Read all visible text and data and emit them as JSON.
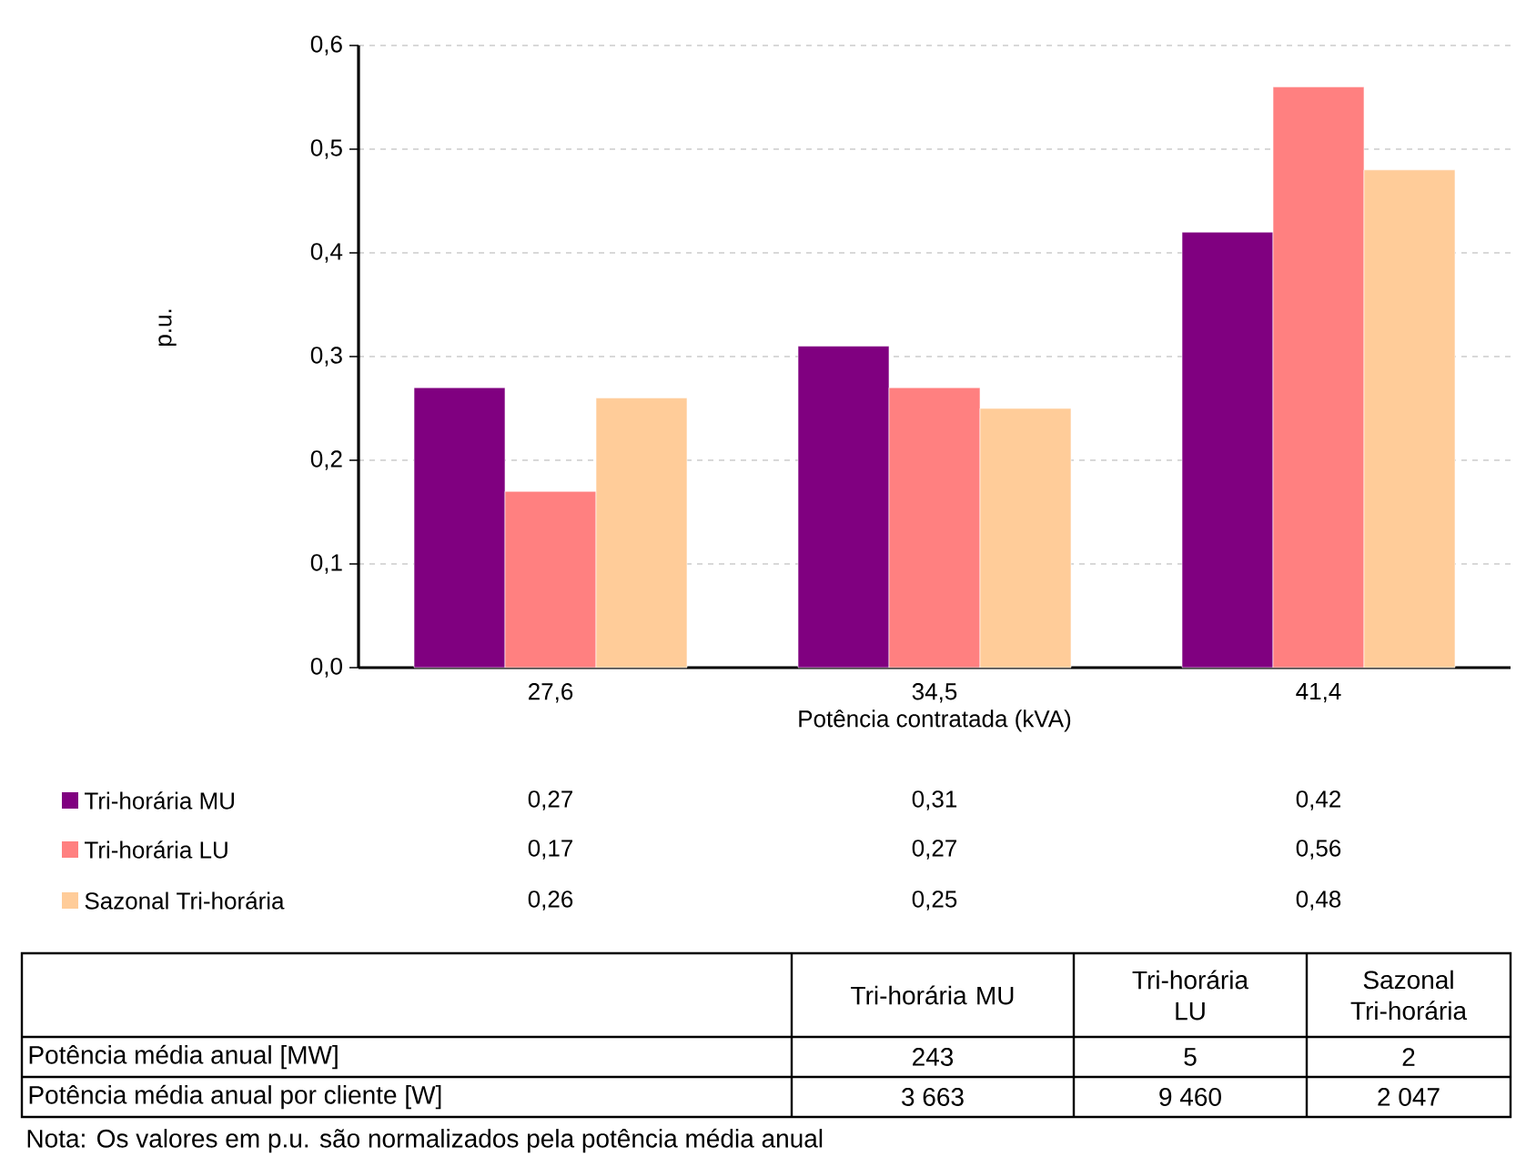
{
  "chart_data": [
    {
      "type": "bar",
      "xlabel": "Potência contratada (kVA)",
      "ylabel": "p.u.",
      "categories": [
        "27,6",
        "34,5",
        "41,4"
      ],
      "series": [
        {
          "name": "Tri-horária MU",
          "color": "#800080",
          "values": [
            0.27,
            0.31,
            0.42
          ],
          "value_labels": [
            "0,27",
            "0,31",
            "0,42"
          ]
        },
        {
          "name": "Tri-horária LU",
          "color": "#ff8080",
          "values": [
            0.17,
            0.27,
            0.56
          ],
          "value_labels": [
            "0,17",
            "0,27",
            "0,56"
          ]
        },
        {
          "name": "Sazonal Tri-horária",
          "color": "#ffcc99",
          "values": [
            0.26,
            0.25,
            0.48
          ],
          "value_labels": [
            "0,26",
            "0,25",
            "0,48"
          ]
        }
      ],
      "ylim": [
        0,
        0.6
      ],
      "yticks": [
        {
          "value": 0,
          "label": "0,0"
        },
        {
          "value": 0.1,
          "label": "0,1"
        },
        {
          "value": 0.2,
          "label": "0,2"
        },
        {
          "value": 0.3,
          "label": "0,3"
        },
        {
          "value": 0.4,
          "label": "0,4"
        },
        {
          "value": 0.5,
          "label": "0,5"
        },
        {
          "value": 0.6,
          "label": "0,6"
        }
      ],
      "grid": "y",
      "legend": "bottom"
    },
    {
      "type": "other",
      "categories": [
        "Tri-horária MU",
        "Tri-horária LU",
        "Sazonal Tri-horária"
      ],
      "series": [
        {
          "name": "Potência média anual [MW]",
          "values": [
            243,
            5,
            2
          ],
          "value_labels": [
            "243",
            "5",
            "2"
          ]
        },
        {
          "name": "Potência média anual por cliente [W]",
          "values": [
            3663,
            9460,
            2047
          ],
          "value_labels": [
            "3 663",
            "9 460",
            "2 047"
          ]
        }
      ],
      "annotations": [
        "Nota: Os valores em p.u. são normalizados pela potência média anual"
      ]
    }
  ]
}
